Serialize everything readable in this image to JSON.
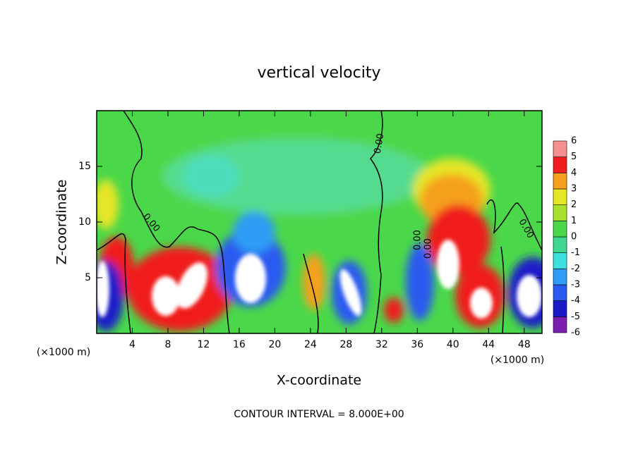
{
  "chart_data": {
    "type": "contour",
    "title": "vertical velocity",
    "xlabel": "X-coordinate",
    "ylabel": "Z-coordinate",
    "x_unit": "(×1000 m)",
    "footer": "CONTOUR INTERVAL = 8.000E+00",
    "xlim": [
      0,
      50
    ],
    "xticks": [
      4,
      8,
      12,
      16,
      20,
      24,
      28,
      32,
      36,
      40,
      44,
      48
    ],
    "ylim": [
      0,
      20
    ],
    "yticks": [
      5,
      10,
      15
    ],
    "contour_labels": [
      "0.00",
      "0.00",
      "0.00",
      "0.00",
      "0.00"
    ],
    "colorbar": {
      "ticks": [
        -6,
        -5,
        -4,
        -3,
        -2,
        -1,
        0,
        1,
        2,
        3,
        4,
        5,
        6
      ],
      "colors": [
        "#7a1fb0",
        "#1a1ac8",
        "#2a5af0",
        "#2f9cf5",
        "#40e0e0",
        "#40d890",
        "#4ad84a",
        "#a8e030",
        "#e6e628",
        "#f5a01e",
        "#f01e1e",
        "#f59090"
      ]
    }
  }
}
